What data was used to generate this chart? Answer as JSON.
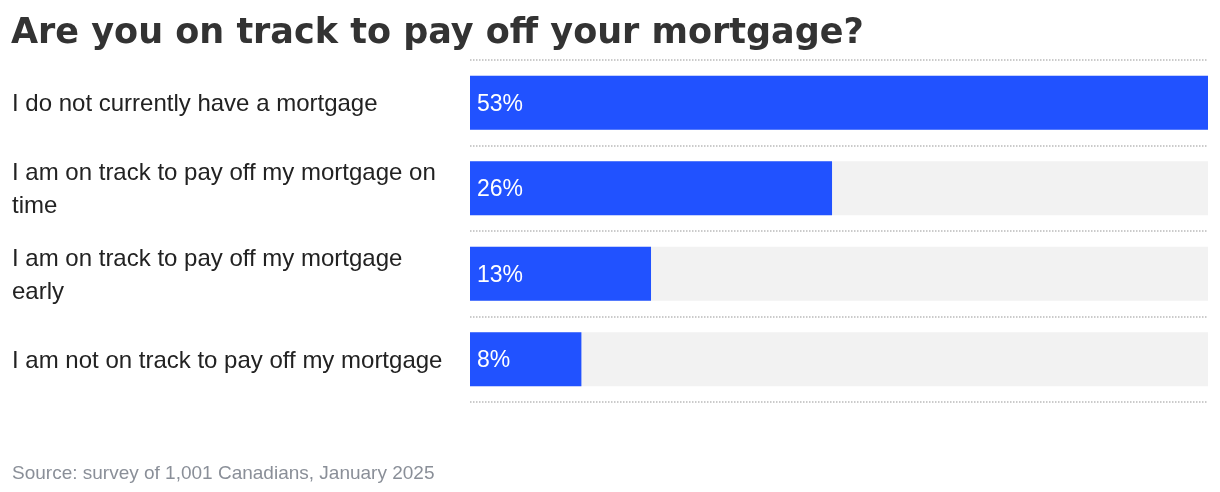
{
  "chart_data": {
    "type": "bar",
    "orientation": "horizontal",
    "title": "Are you on track to pay off your mortgage?",
    "categories": [
      "I do not currently have a mortgage",
      "I am on track to pay off my mortgage on time",
      "I am on track to pay off my mortgage early",
      "I am not on track to pay off my mortgage"
    ],
    "values": [
      53,
      26,
      13,
      8
    ],
    "value_labels": [
      "53%",
      "26%",
      "13%",
      "8%"
    ],
    "color": "#2152ff",
    "xlim": [
      0,
      53
    ],
    "grid": "y",
    "tick_labels": "y",
    "annotations": [
      "Source: survey of 1,001 Canadians, January 2025"
    ]
  }
}
